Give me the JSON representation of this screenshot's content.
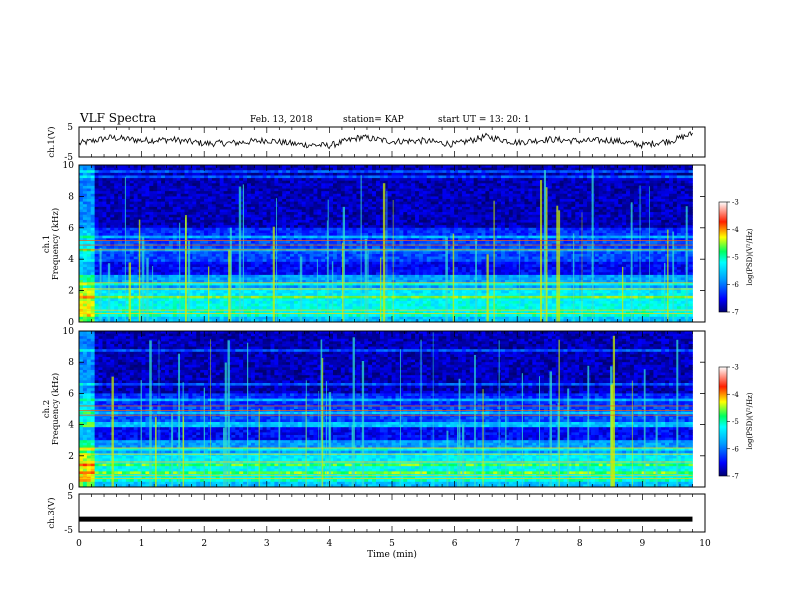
{
  "header": {
    "title": "VLF Spectra",
    "date": "Feb. 13, 2018",
    "station": "station= KAP",
    "start_ut": "start  UT  =   13: 20: 1"
  },
  "chart_data": [
    {
      "type": "line",
      "name": "ch1-voltage",
      "ylabel": "ch.1(V)",
      "ylim": [
        -5,
        5
      ],
      "yticklabels": [
        "5",
        "-5"
      ],
      "x_unit": "min",
      "x_range": [
        0,
        9.8
      ],
      "description_values": {
        "x": [
          0,
          0.5,
          1,
          1.5,
          2,
          2.5,
          3,
          3.5,
          4,
          4.5,
          5,
          5.5,
          6,
          6.5,
          7,
          7.5,
          8,
          8.5,
          9,
          9.5,
          9.8
        ],
        "y": [
          -0.5,
          1.5,
          0.5,
          0.8,
          -0.5,
          -0.3,
          0.6,
          -0.8,
          -1.2,
          1.6,
          0.2,
          0.4,
          -0.8,
          1.8,
          -0.2,
          0.9,
          0.3,
          0.6,
          -1.0,
          0.6,
          2.8
        ]
      }
    },
    {
      "type": "heatmap",
      "name": "ch1-spectrogram",
      "ylabel_line1": "ch.1",
      "ylabel_line2": "Frequency (kHz)",
      "ylim": [
        0,
        10
      ],
      "yticklabels": [
        "0",
        "2",
        "4",
        "6",
        "8",
        "10"
      ],
      "x_range": [
        0,
        9.8
      ],
      "colorbar": {
        "label": "log(PSD)(V²/Hz)",
        "range": [
          -7,
          -3
        ],
        "ticklabels": [
          "-3",
          "-4",
          "-5",
          "-6",
          "-7"
        ]
      }
    },
    {
      "type": "heatmap",
      "name": "ch2-spectrogram",
      "ylabel_line1": "ch.2",
      "ylabel_line2": "Frequency (kHz)",
      "ylim": [
        0,
        10
      ],
      "yticklabels": [
        "0",
        "2",
        "4",
        "6",
        "8",
        "10"
      ],
      "x_range": [
        0,
        9.8
      ],
      "colorbar": {
        "label": "log(PSD)(V²/Hz)",
        "range": [
          -7,
          -3
        ],
        "ticklabels": [
          "-3",
          "-4",
          "-5",
          "-6",
          "-7"
        ]
      }
    },
    {
      "type": "line",
      "name": "ch3-voltage",
      "ylabel": "ch.3(V)",
      "ylim": [
        -5,
        5
      ],
      "yticklabels": [
        "5",
        "-5"
      ],
      "x": [
        0,
        9.8
      ],
      "y": [
        -1.6,
        -1.6
      ]
    }
  ],
  "xaxis": {
    "label": "Time (min)",
    "range": [
      0,
      10
    ],
    "ticklabels": [
      "0",
      "1",
      "2",
      "3",
      "4",
      "5",
      "6",
      "7",
      "8",
      "9",
      "10"
    ]
  }
}
